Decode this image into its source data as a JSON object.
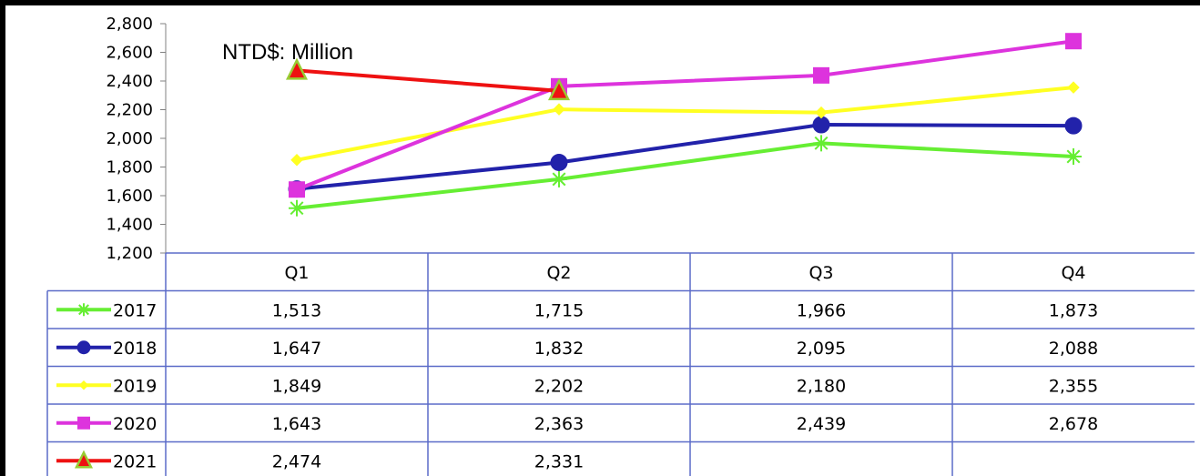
{
  "chart_data": {
    "type": "line",
    "title": "",
    "unit_label": "NTD$: Million",
    "categories": [
      "Q1",
      "Q2",
      "Q3",
      "Q4"
    ],
    "ylim": [
      1200,
      2800
    ],
    "yticks": [
      1200,
      1400,
      1600,
      1800,
      2000,
      2200,
      2400,
      2600,
      2800
    ],
    "ytick_labels": [
      "1,200",
      "1,400",
      "1,600",
      "1,800",
      "2,000",
      "2,200",
      "2,400",
      "2,600",
      "2,800"
    ],
    "grid": false,
    "legend": "data-table-left",
    "series": [
      {
        "name": "2017",
        "color": "#66ee33",
        "marker": "asterisk",
        "values": [
          1513,
          1715,
          1966,
          1873
        ],
        "labels": [
          "1,513",
          "1,715",
          "1,966",
          "1,873"
        ]
      },
      {
        "name": "2018",
        "color": "#2222aa",
        "marker": "circle",
        "values": [
          1647,
          1832,
          2095,
          2088
        ],
        "labels": [
          "1,647",
          "1,832",
          "2,095",
          "2,088"
        ]
      },
      {
        "name": "2019",
        "color": "#ffff22",
        "marker": "diamond",
        "values": [
          1849,
          2202,
          2180,
          2355
        ],
        "labels": [
          "1,849",
          "2,202",
          "2,180",
          "2,355"
        ]
      },
      {
        "name": "2020",
        "color": "#dd33dd",
        "marker": "square",
        "values": [
          1643,
          2363,
          2439,
          2678
        ],
        "labels": [
          "1,643",
          "2,363",
          "2,439",
          "2,678"
        ]
      },
      {
        "name": "2021",
        "color": "#ee1111",
        "marker": "triangle",
        "values": [
          2474,
          2331,
          null,
          null
        ],
        "labels": [
          "2,474",
          "2,331",
          "",
          ""
        ]
      }
    ]
  }
}
